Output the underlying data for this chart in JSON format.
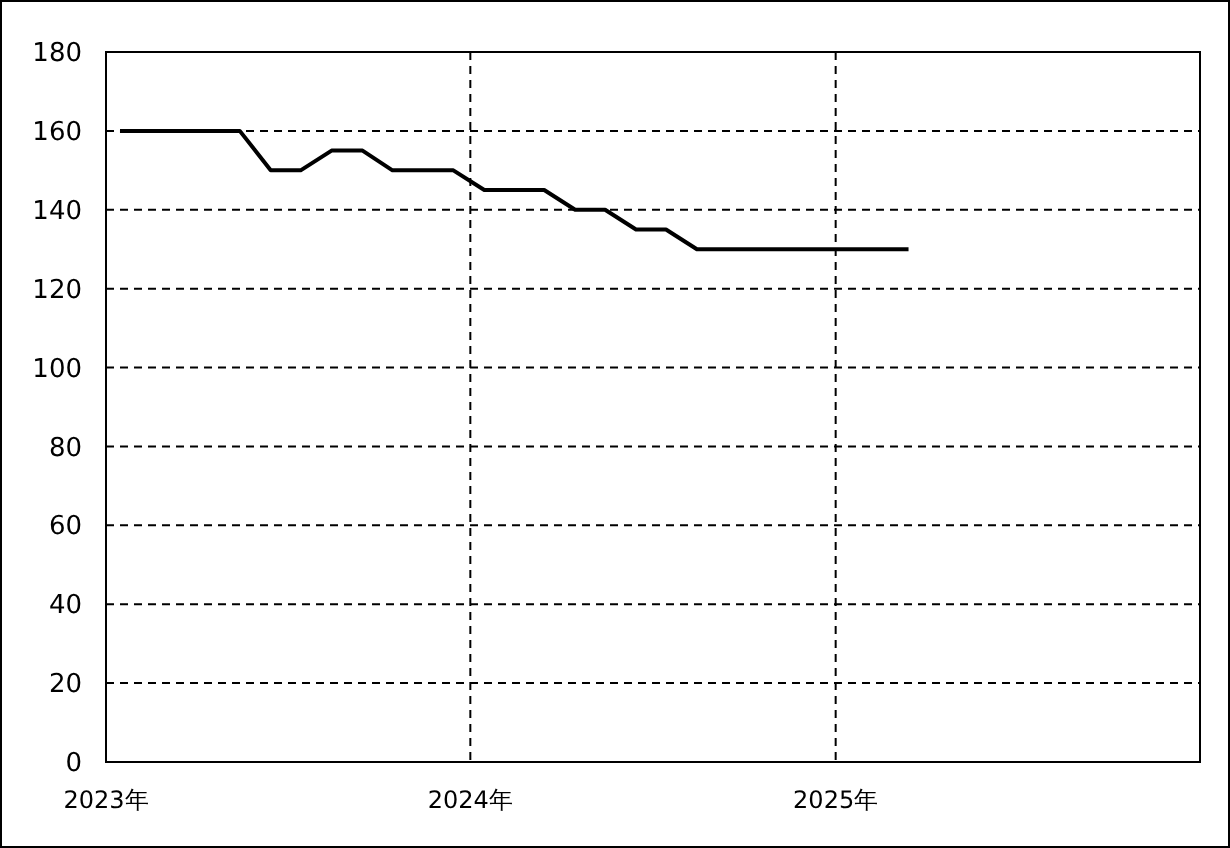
{
  "chart_data": {
    "type": "line",
    "x": [
      "2023-01-15",
      "2023-05-15",
      "2023-06-15",
      "2023-07-15",
      "2023-08-15",
      "2023-09-15",
      "2023-10-15",
      "2023-12-15",
      "2024-01-15",
      "2024-03-15",
      "2024-04-15",
      "2024-05-15",
      "2024-06-15",
      "2024-07-15",
      "2024-08-15",
      "2025-03-15"
    ],
    "series": [
      {
        "color": "#000000",
        "values": [
          160,
          160,
          150,
          150,
          155,
          155,
          150,
          150,
          145,
          145,
          140,
          140,
          135,
          135,
          130,
          130
        ]
      }
    ],
    "xlim": [
      "2023-01-01",
      "2026-01-01"
    ],
    "xticks": [
      {
        "value": "2023-01-01",
        "label": "2023年"
      },
      {
        "value": "2024-01-01",
        "label": "2024年"
      },
      {
        "value": "2025-01-01",
        "label": "2025年"
      }
    ],
    "ylim": [
      0,
      180
    ],
    "yticks": [
      0,
      20,
      40,
      60,
      80,
      100,
      120,
      140,
      160,
      180
    ],
    "grid": true,
    "marker": "none",
    "line_style": "solid"
  }
}
